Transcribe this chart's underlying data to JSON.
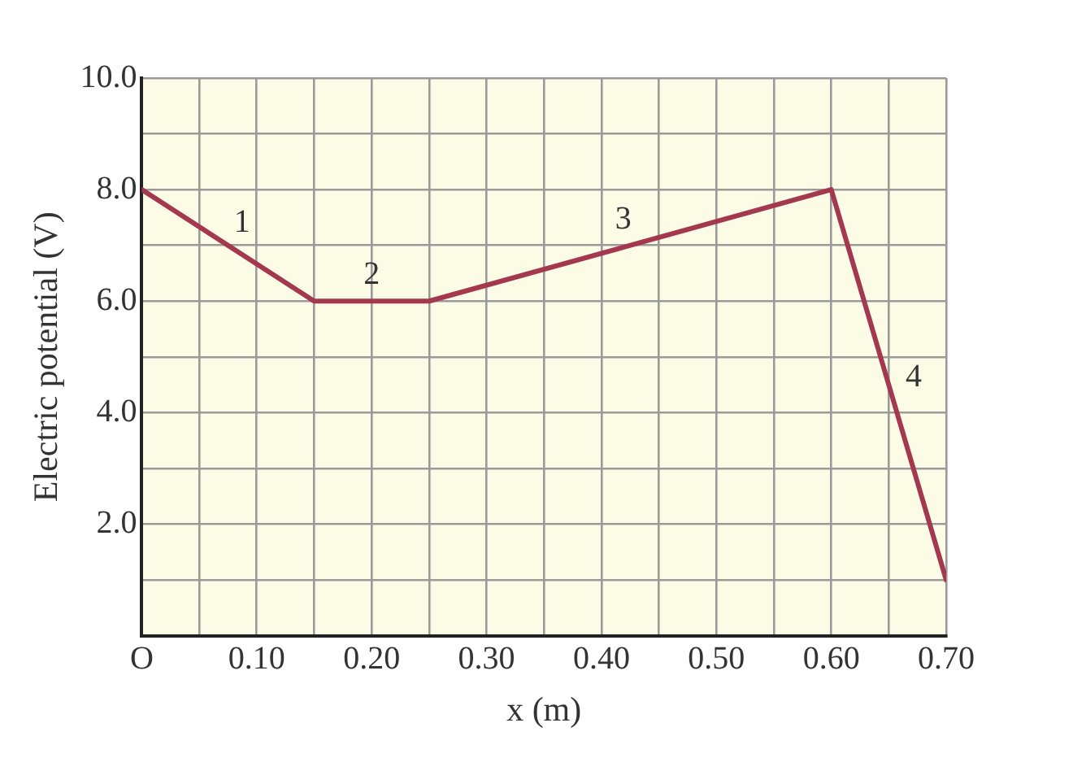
{
  "chart_data": {
    "type": "line",
    "xlabel": "x (m)",
    "ylabel": "Electric potential (V)",
    "x": [
      0,
      0.15,
      0.25,
      0.6,
      0.7
    ],
    "series": [
      {
        "color": "#a3384f",
        "values": [
          8.0,
          6.0,
          6.0,
          8.0,
          1.0
        ]
      }
    ],
    "xlim": [
      0,
      0.7
    ],
    "ylim": [
      0,
      10
    ],
    "xticks": [
      {
        "value": 0,
        "label": "O"
      },
      {
        "value": 0.05,
        "label": null
      },
      {
        "value": 0.1,
        "label": "0.10"
      },
      {
        "value": 0.15,
        "label": null
      },
      {
        "value": 0.2,
        "label": "0.20"
      },
      {
        "value": 0.25,
        "label": null
      },
      {
        "value": 0.3,
        "label": "0.30"
      },
      {
        "value": 0.35,
        "label": null
      },
      {
        "value": 0.4,
        "label": "0.40"
      },
      {
        "value": 0.45,
        "label": null
      },
      {
        "value": 0.5,
        "label": "0.50"
      },
      {
        "value": 0.55,
        "label": null
      },
      {
        "value": 0.6,
        "label": "0.60"
      },
      {
        "value": 0.65,
        "label": null
      },
      {
        "value": 0.7,
        "label": "0.70"
      }
    ],
    "yticks": [
      {
        "value": 0,
        "label": null
      },
      {
        "value": 1,
        "label": null
      },
      {
        "value": 2,
        "label": "2.0"
      },
      {
        "value": 3,
        "label": null
      },
      {
        "value": 4,
        "label": "4.0"
      },
      {
        "value": 5,
        "label": null
      },
      {
        "value": 6,
        "label": "6.0"
      },
      {
        "value": 7,
        "label": null
      },
      {
        "value": 8,
        "label": "8.0"
      },
      {
        "value": 9,
        "label": null
      },
      {
        "value": 10,
        "label": "10.0"
      }
    ],
    "grid": true,
    "legend": false,
    "marker": "none",
    "line_style": "solid",
    "annotations": [
      "1",
      "2",
      "3",
      "4"
    ]
  }
}
